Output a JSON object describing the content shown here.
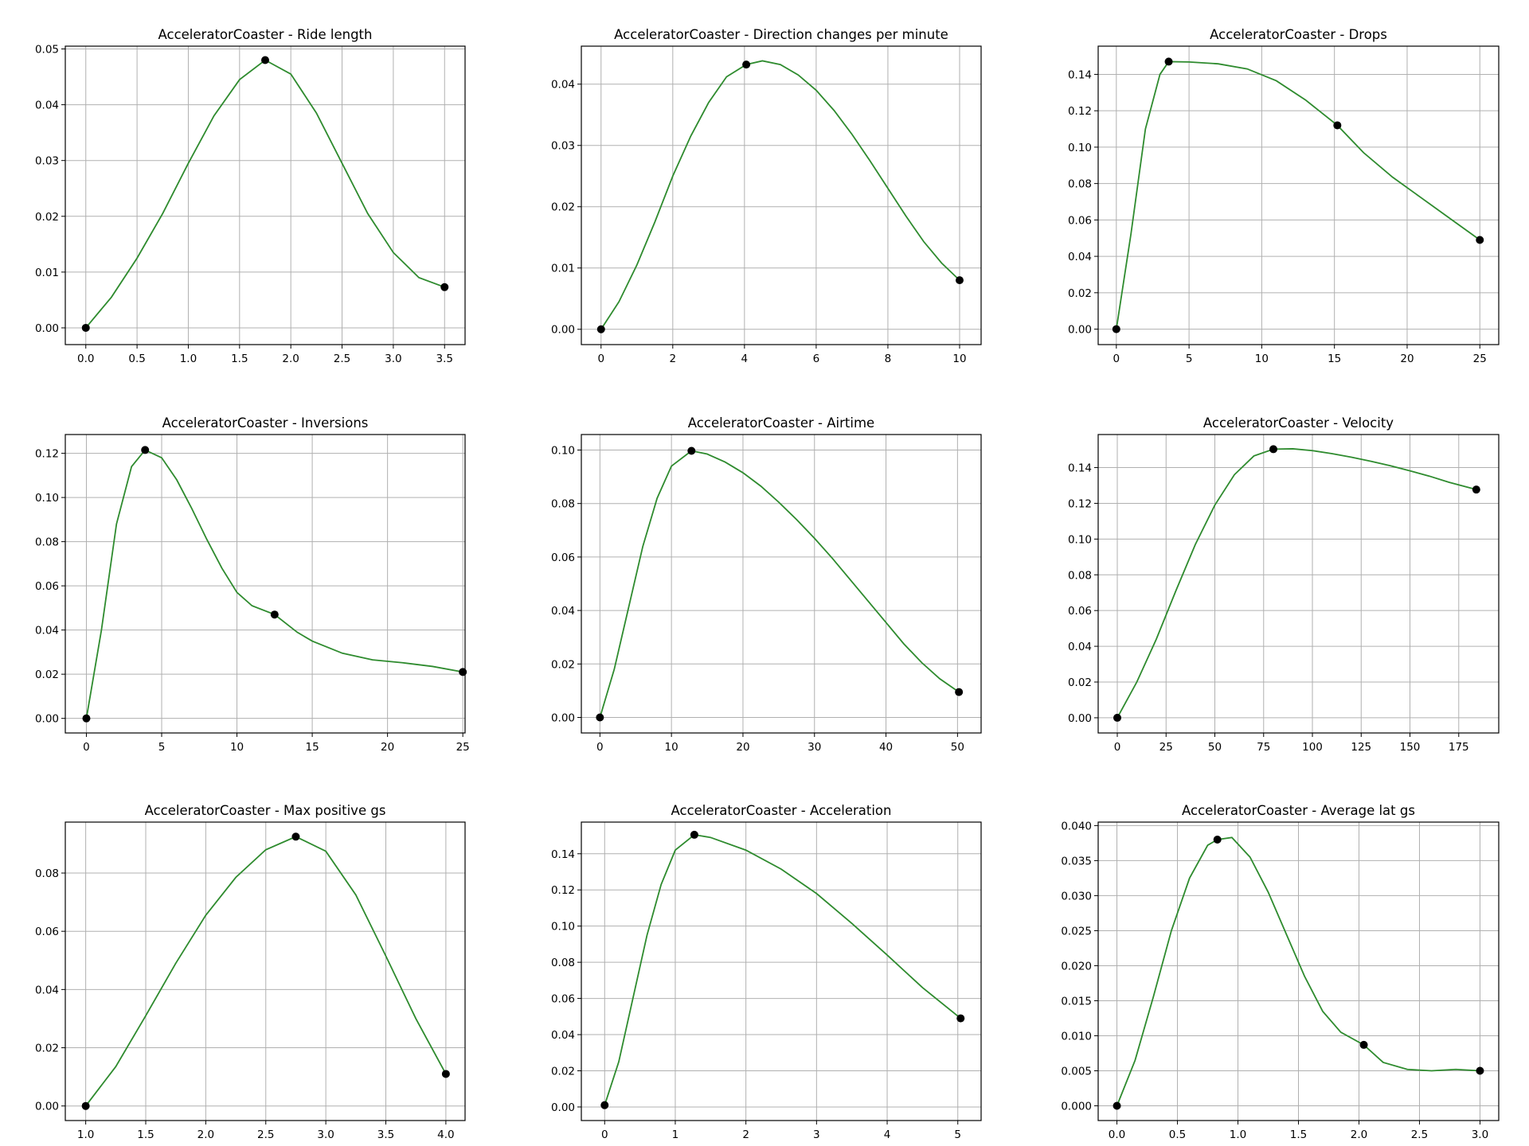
{
  "chart_data": [
    {
      "type": "line",
      "title": "AcceleratorCoaster - Ride length",
      "xlim": [
        -0.2,
        3.7
      ],
      "ylim": [
        -0.003,
        0.0505
      ],
      "xticks": [
        0.0,
        0.5,
        1.0,
        1.5,
        2.0,
        2.5,
        3.0,
        3.5
      ],
      "xtick_labels": [
        "0.0",
        "0.5",
        "1.0",
        "1.5",
        "2.0",
        "2.5",
        "3.0",
        "3.5"
      ],
      "yticks": [
        0.0,
        0.01,
        0.02,
        0.03,
        0.04,
        0.05
      ],
      "ytick_labels": [
        "0.00",
        "0.01",
        "0.02",
        "0.03",
        "0.04",
        "0.05"
      ],
      "points": [
        [
          0.0,
          0.0
        ],
        [
          1.75,
          0.048
        ],
        [
          3.5,
          0.0073
        ]
      ],
      "curve": [
        [
          0.0,
          0.0
        ],
        [
          0.25,
          0.0055
        ],
        [
          0.5,
          0.0125
        ],
        [
          0.75,
          0.0205
        ],
        [
          1.0,
          0.0295
        ],
        [
          1.25,
          0.038
        ],
        [
          1.5,
          0.0445
        ],
        [
          1.75,
          0.048
        ],
        [
          2.0,
          0.0455
        ],
        [
          2.25,
          0.0385
        ],
        [
          2.5,
          0.0295
        ],
        [
          2.75,
          0.0205
        ],
        [
          3.0,
          0.0135
        ],
        [
          3.25,
          0.009
        ],
        [
          3.5,
          0.0073
        ]
      ],
      "grid": true,
      "color": "#2e8b2e"
    },
    {
      "type": "line",
      "title": "AcceleratorCoaster - Direction changes per minute",
      "xlim": [
        -0.55,
        10.6
      ],
      "ylim": [
        -0.0025,
        0.0462
      ],
      "xticks": [
        0,
        2,
        4,
        6,
        8,
        10
      ],
      "xtick_labels": [
        "0",
        "2",
        "4",
        "6",
        "8",
        "10"
      ],
      "yticks": [
        0.0,
        0.01,
        0.02,
        0.03,
        0.04
      ],
      "ytick_labels": [
        "0.00",
        "0.01",
        "0.02",
        "0.03",
        "0.04"
      ],
      "points": [
        [
          0,
          0.0
        ],
        [
          4.05,
          0.0432
        ],
        [
          10,
          0.008
        ]
      ],
      "curve": [
        [
          0,
          0.0
        ],
        [
          0.5,
          0.0045
        ],
        [
          1,
          0.0105
        ],
        [
          1.5,
          0.0175
        ],
        [
          2,
          0.025
        ],
        [
          2.5,
          0.0315
        ],
        [
          3,
          0.037
        ],
        [
          3.5,
          0.0412
        ],
        [
          4.05,
          0.0432
        ],
        [
          4.5,
          0.0438
        ],
        [
          5,
          0.0432
        ],
        [
          5.5,
          0.0415
        ],
        [
          6,
          0.039
        ],
        [
          6.5,
          0.0357
        ],
        [
          7,
          0.0318
        ],
        [
          7.5,
          0.0275
        ],
        [
          8,
          0.023
        ],
        [
          8.5,
          0.0185
        ],
        [
          9,
          0.0143
        ],
        [
          9.5,
          0.0108
        ],
        [
          10,
          0.008
        ]
      ],
      "grid": true,
      "color": "#2e8b2e"
    },
    {
      "type": "line",
      "title": "AcceleratorCoaster - Drops",
      "xlim": [
        -1.25,
        26.3
      ],
      "ylim": [
        -0.0085,
        0.1555
      ],
      "xticks": [
        0,
        5,
        10,
        15,
        20,
        25
      ],
      "xtick_labels": [
        "0",
        "5",
        "10",
        "15",
        "20",
        "25"
      ],
      "yticks": [
        0.0,
        0.02,
        0.04,
        0.06,
        0.08,
        0.1,
        0.12,
        0.14
      ],
      "ytick_labels": [
        "0.00",
        "0.02",
        "0.04",
        "0.06",
        "0.08",
        "0.10",
        "0.12",
        "0.14"
      ],
      "points": [
        [
          0,
          0.0
        ],
        [
          3.6,
          0.147
        ],
        [
          15.2,
          0.112
        ],
        [
          25,
          0.049
        ]
      ],
      "curve": [
        [
          0,
          0.0
        ],
        [
          1,
          0.052
        ],
        [
          2,
          0.11
        ],
        [
          3,
          0.14
        ],
        [
          3.6,
          0.147
        ],
        [
          5,
          0.1468
        ],
        [
          7,
          0.1458
        ],
        [
          9,
          0.143
        ],
        [
          11,
          0.1365
        ],
        [
          13,
          0.126
        ],
        [
          15.2,
          0.112
        ],
        [
          17,
          0.097
        ],
        [
          19,
          0.0835
        ],
        [
          21,
          0.072
        ],
        [
          23,
          0.0605
        ],
        [
          25,
          0.049
        ]
      ],
      "grid": true,
      "color": "#2e8b2e"
    },
    {
      "type": "line",
      "title": "AcceleratorCoaster - Inversions",
      "xlim": [
        -1.4,
        25.15
      ],
      "ylim": [
        -0.0066,
        0.1285
      ],
      "xticks": [
        0,
        5,
        10,
        15,
        20,
        25
      ],
      "xtick_labels": [
        "0",
        "5",
        "10",
        "15",
        "20",
        "25"
      ],
      "yticks": [
        0.0,
        0.02,
        0.04,
        0.06,
        0.08,
        0.1,
        0.12
      ],
      "ytick_labels": [
        "0.00",
        "0.02",
        "0.04",
        "0.06",
        "0.08",
        "0.10",
        "0.12"
      ],
      "points": [
        [
          0,
          0.0
        ],
        [
          3.9,
          0.1215
        ],
        [
          12.5,
          0.047
        ],
        [
          25,
          0.021
        ]
      ],
      "curve": [
        [
          0,
          0.0
        ],
        [
          1,
          0.04
        ],
        [
          2,
          0.088
        ],
        [
          3,
          0.114
        ],
        [
          3.9,
          0.1215
        ],
        [
          5,
          0.118
        ],
        [
          6,
          0.108
        ],
        [
          7,
          0.095
        ],
        [
          8,
          0.081
        ],
        [
          9,
          0.068
        ],
        [
          10,
          0.057
        ],
        [
          11,
          0.051
        ],
        [
          12.5,
          0.047
        ],
        [
          14,
          0.039
        ],
        [
          15,
          0.035
        ],
        [
          17,
          0.0295
        ],
        [
          19,
          0.0265
        ],
        [
          21,
          0.0252
        ],
        [
          23,
          0.0235
        ],
        [
          25,
          0.021
        ]
      ],
      "grid": true,
      "color": "#2e8b2e"
    },
    {
      "type": "line",
      "title": "AcceleratorCoaster - Airtime",
      "xlim": [
        -2.6,
        53.3
      ],
      "ylim": [
        -0.0058,
        0.1058
      ],
      "xticks": [
        0,
        10,
        20,
        30,
        40,
        50
      ],
      "xtick_labels": [
        "0",
        "10",
        "20",
        "30",
        "40",
        "50"
      ],
      "yticks": [
        0.0,
        0.02,
        0.04,
        0.06,
        0.08,
        0.1
      ],
      "ytick_labels": [
        "0.00",
        "0.02",
        "0.04",
        "0.06",
        "0.08",
        "0.10"
      ],
      "points": [
        [
          0,
          0.0
        ],
        [
          12.8,
          0.0997
        ],
        [
          50.2,
          0.0095
        ]
      ],
      "curve": [
        [
          0,
          0.0
        ],
        [
          2,
          0.018
        ],
        [
          4,
          0.041
        ],
        [
          6,
          0.064
        ],
        [
          8,
          0.082
        ],
        [
          10,
          0.094
        ],
        [
          12.8,
          0.0997
        ],
        [
          15,
          0.0985
        ],
        [
          17.5,
          0.0955
        ],
        [
          20,
          0.0915
        ],
        [
          22.5,
          0.0865
        ],
        [
          25,
          0.0805
        ],
        [
          27.5,
          0.074
        ],
        [
          30,
          0.067
        ],
        [
          32.5,
          0.0595
        ],
        [
          35,
          0.0515
        ],
        [
          37.5,
          0.0435
        ],
        [
          40,
          0.0355
        ],
        [
          42.5,
          0.0275
        ],
        [
          45,
          0.0205
        ],
        [
          47.5,
          0.0145
        ],
        [
          50.2,
          0.0095
        ]
      ],
      "grid": true,
      "color": "#2e8b2e"
    },
    {
      "type": "line",
      "title": "AcceleratorCoaster - Velocity",
      "xlim": [
        -9.8,
        195.5
      ],
      "ylim": [
        -0.0085,
        0.1585
      ],
      "xticks": [
        0,
        25,
        50,
        75,
        100,
        125,
        150,
        175
      ],
      "xtick_labels": [
        "0",
        "25",
        "50",
        "75",
        "100",
        "125",
        "150",
        "175"
      ],
      "yticks": [
        0.0,
        0.02,
        0.04,
        0.06,
        0.08,
        0.1,
        0.12,
        0.14
      ],
      "ytick_labels": [
        "0.00",
        "0.02",
        "0.04",
        "0.06",
        "0.08",
        "0.10",
        "0.12",
        "0.14"
      ],
      "points": [
        [
          0,
          0.0
        ],
        [
          80,
          0.1503
        ],
        [
          184,
          0.1277
        ]
      ],
      "curve": [
        [
          0,
          0.0
        ],
        [
          10,
          0.02
        ],
        [
          20,
          0.044
        ],
        [
          30,
          0.071
        ],
        [
          40,
          0.097
        ],
        [
          50,
          0.119
        ],
        [
          60,
          0.136
        ],
        [
          70,
          0.1465
        ],
        [
          80,
          0.1503
        ],
        [
          90,
          0.1505
        ],
        [
          100,
          0.1495
        ],
        [
          110,
          0.1478
        ],
        [
          120,
          0.1458
        ],
        [
          130,
          0.1435
        ],
        [
          140,
          0.141
        ],
        [
          150,
          0.1382
        ],
        [
          160,
          0.1352
        ],
        [
          170,
          0.1318
        ],
        [
          184,
          0.1277
        ]
      ],
      "grid": true,
      "color": "#2e8b2e"
    },
    {
      "type": "line",
      "title": "AcceleratorCoaster - Max positive gs",
      "xlim": [
        0.83,
        4.16
      ],
      "ylim": [
        -0.005,
        0.0975
      ],
      "xticks": [
        1.0,
        1.5,
        2.0,
        2.5,
        3.0,
        3.5,
        4.0
      ],
      "xtick_labels": [
        "1.0",
        "1.5",
        "2.0",
        "2.5",
        "3.0",
        "3.5",
        "4.0"
      ],
      "yticks": [
        0.0,
        0.02,
        0.04,
        0.06,
        0.08
      ],
      "ytick_labels": [
        "0.00",
        "0.02",
        "0.04",
        "0.06",
        "0.08"
      ],
      "points": [
        [
          1.0,
          0.0
        ],
        [
          2.75,
          0.0925
        ],
        [
          4.0,
          0.011
        ]
      ],
      "curve": [
        [
          1.0,
          0.0
        ],
        [
          1.25,
          0.0135
        ],
        [
          1.5,
          0.031
        ],
        [
          1.75,
          0.049
        ],
        [
          2.0,
          0.0655
        ],
        [
          2.25,
          0.0785
        ],
        [
          2.5,
          0.088
        ],
        [
          2.75,
          0.0925
        ],
        [
          3.0,
          0.0875
        ],
        [
          3.25,
          0.0725
        ],
        [
          3.5,
          0.0515
        ],
        [
          3.75,
          0.03
        ],
        [
          4.0,
          0.011
        ]
      ],
      "grid": true,
      "color": "#2e8b2e"
    },
    {
      "type": "line",
      "title": "AcceleratorCoaster - Acceleration",
      "xlim": [
        -0.33,
        5.33
      ],
      "ylim": [
        -0.0075,
        0.1575
      ],
      "xticks": [
        0,
        1,
        2,
        3,
        4,
        5
      ],
      "xtick_labels": [
        "0",
        "1",
        "2",
        "3",
        "4",
        "5"
      ],
      "yticks": [
        0.0,
        0.02,
        0.04,
        0.06,
        0.08,
        0.1,
        0.12,
        0.14
      ],
      "ytick_labels": [
        "0.00",
        "0.02",
        "0.04",
        "0.06",
        "0.08",
        "0.10",
        "0.12",
        "0.14"
      ],
      "points": [
        [
          0,
          0.001
        ],
        [
          1.27,
          0.1505
        ],
        [
          5.04,
          0.049
        ]
      ],
      "curve": [
        [
          0,
          0.001
        ],
        [
          0.2,
          0.025
        ],
        [
          0.4,
          0.06
        ],
        [
          0.6,
          0.095
        ],
        [
          0.8,
          0.123
        ],
        [
          1.0,
          0.142
        ],
        [
          1.27,
          0.1505
        ],
        [
          1.5,
          0.149
        ],
        [
          2.0,
          0.142
        ],
        [
          2.5,
          0.1315
        ],
        [
          3.0,
          0.118
        ],
        [
          3.5,
          0.1015
        ],
        [
          4.0,
          0.084
        ],
        [
          4.5,
          0.066
        ],
        [
          5.04,
          0.049
        ]
      ],
      "grid": true,
      "color": "#2e8b2e"
    },
    {
      "type": "line",
      "title": "AcceleratorCoaster - Average lat gs",
      "xlim": [
        -0.155,
        3.155
      ],
      "ylim": [
        -0.0021,
        0.0405
      ],
      "xticks": [
        0.0,
        0.5,
        1.0,
        1.5,
        2.0,
        2.5,
        3.0
      ],
      "xtick_labels": [
        "0.0",
        "0.5",
        "1.0",
        "1.5",
        "2.0",
        "2.5",
        "3.0"
      ],
      "yticks": [
        0.0,
        0.005,
        0.01,
        0.015,
        0.02,
        0.025,
        0.03,
        0.035,
        0.04
      ],
      "ytick_labels": [
        "0.000",
        "0.005",
        "0.010",
        "0.015",
        "0.020",
        "0.025",
        "0.030",
        "0.035",
        "0.040"
      ],
      "points": [
        [
          0.0,
          0.0
        ],
        [
          0.83,
          0.038
        ],
        [
          2.04,
          0.0087
        ],
        [
          3.0,
          0.005
        ]
      ],
      "curve": [
        [
          0.0,
          0.0
        ],
        [
          0.15,
          0.0065
        ],
        [
          0.3,
          0.0155
        ],
        [
          0.45,
          0.025
        ],
        [
          0.6,
          0.0325
        ],
        [
          0.75,
          0.0372
        ],
        [
          0.83,
          0.038
        ],
        [
          0.95,
          0.0383
        ],
        [
          1.1,
          0.0355
        ],
        [
          1.25,
          0.0305
        ],
        [
          1.4,
          0.0245
        ],
        [
          1.55,
          0.0185
        ],
        [
          1.7,
          0.0135
        ],
        [
          1.85,
          0.0105
        ],
        [
          2.04,
          0.0087
        ],
        [
          2.2,
          0.0062
        ],
        [
          2.4,
          0.0052
        ],
        [
          2.6,
          0.005
        ],
        [
          2.8,
          0.0052
        ],
        [
          3.0,
          0.005
        ]
      ],
      "grid": true,
      "color": "#2e8b2e"
    }
  ]
}
